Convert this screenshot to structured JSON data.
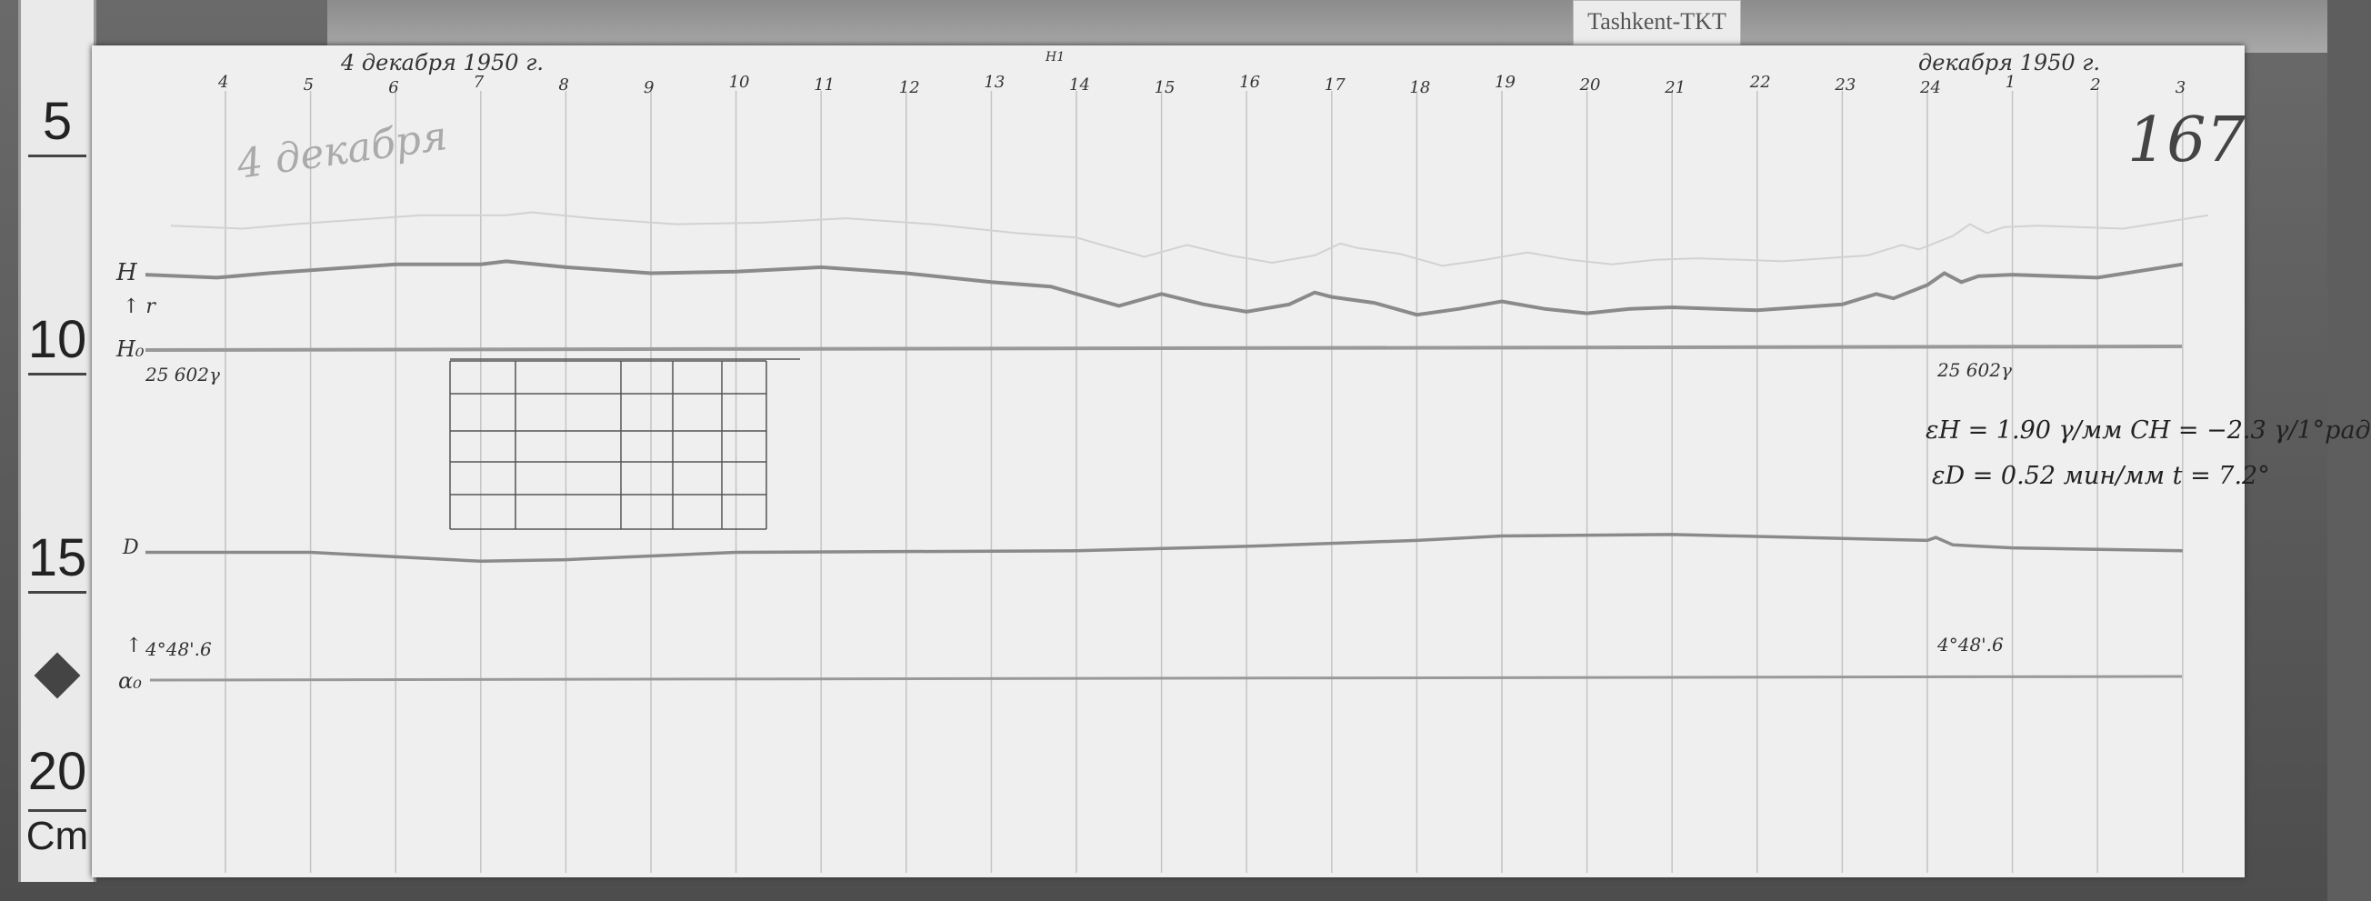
{
  "station_tag": "Tashkent-TKT",
  "ruler": {
    "labels": [
      "5",
      "10",
      "15",
      "20"
    ],
    "unit": "Cm"
  },
  "header": {
    "left_date": "4 декабря 1950 г.",
    "right_date": "декабря 1950 г.",
    "mark": "H1"
  },
  "hours": [
    "4",
    "5",
    "6",
    "7",
    "8",
    "9",
    "10",
    "11",
    "12",
    "13",
    "14",
    "15",
    "16",
    "17",
    "18",
    "19",
    "20",
    "21",
    "22",
    "23",
    "24",
    "1",
    "2",
    "3"
  ],
  "sheet_number": "167",
  "day_note": "4 декабря",
  "channel_labels": {
    "h": "H",
    "h_arrow": "↑ r",
    "h0": "H₀",
    "d": "D",
    "d_arrow": "↑",
    "alpha0": "α₀"
  },
  "baselines": {
    "h0_left": "25 602γ",
    "h0_right": "25 602γ",
    "d0_left": "4°48'.6",
    "d0_right": "4°48'.6"
  },
  "constants": {
    "line1": "εH = 1.90 γ/мм   CH = −2.3 γ/1°рад",
    "line2": "εD = 0.52 мин/мм   t = 7.2°"
  },
  "colors": {
    "paper": "#efefef",
    "trace": "#8a8a8a",
    "ink": "#333333"
  }
}
